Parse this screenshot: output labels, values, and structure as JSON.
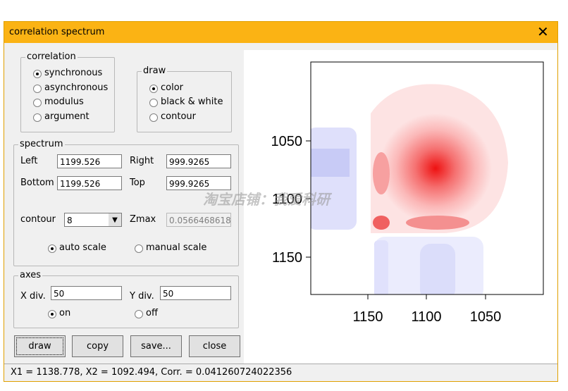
{
  "window": {
    "title": "correlation spectrum"
  },
  "correlation": {
    "legend": "correlation",
    "options": [
      "synchronous",
      "asynchronous",
      "modulus",
      "argument"
    ],
    "selected": 0
  },
  "draw": {
    "legend": "draw",
    "options": [
      "color",
      "black & white",
      "contour"
    ],
    "selected": 0
  },
  "spectrum": {
    "legend": "spectrum",
    "left_label": "Left",
    "left": "1199.526",
    "right_label": "Right",
    "right": "999.9265",
    "bottom_label": "Bottom",
    "bottom": "1199.526",
    "top_label": "Top",
    "top": "999.9265",
    "contour_label": "contour",
    "contour": "8",
    "zmax_label": "Zmax",
    "zmax": "0.0566468618",
    "scale_options": [
      "auto scale",
      "manual scale"
    ],
    "scale_selected": 0
  },
  "axes": {
    "legend": "axes",
    "xdiv_label": "X div.",
    "xdiv": "50",
    "ydiv_label": "Y div.",
    "ydiv": "50",
    "options": [
      "on",
      "off"
    ],
    "selected": 0
  },
  "buttons": [
    "draw",
    "copy",
    "save...",
    "close"
  ],
  "plot": {
    "yticks": [
      "1050",
      "1100",
      "1150"
    ],
    "xticks": [
      "1150",
      "1100",
      "1050"
    ]
  },
  "watermark": "淘宝店铺：我爱科研",
  "status": "X1 = 1138.778,  X2 = 1092.494,  Corr. = 0.041260724022356"
}
